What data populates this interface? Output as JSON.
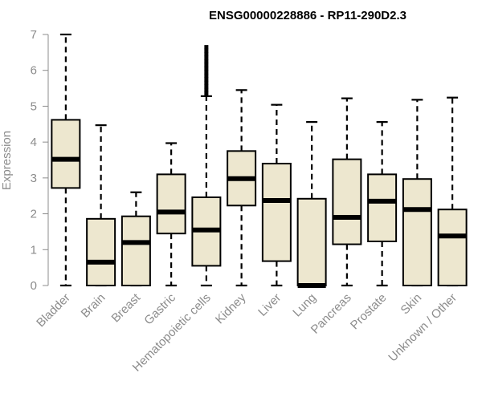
{
  "chart_data": {
    "type": "boxplot",
    "title": "ENSG00000228886 - RP11-290D2.3",
    "xlabel": "",
    "ylabel": "Expression",
    "ylim": [
      0,
      7
    ],
    "yticks": [
      "0",
      "1",
      "2",
      "3",
      "4",
      "5",
      "6",
      "7"
    ],
    "grid": false,
    "box_fill": "#ede7cf",
    "box_stroke": "#000000",
    "categories": [
      "Bladder",
      "Brain",
      "Breast",
      "Gastric",
      "Hematopoietic cells",
      "Kidney",
      "Liver",
      "Lung",
      "Pancreas",
      "Prostate",
      "Skin",
      "Unknown / Other"
    ],
    "boxes": [
      {
        "min": 0,
        "q1": 2.72,
        "median": 3.52,
        "q3": 4.62,
        "max": 7.0,
        "outliers": []
      },
      {
        "min": 0,
        "q1": 0,
        "median": 0.65,
        "q3": 1.86,
        "max": 4.47,
        "outliers": []
      },
      {
        "min": 0,
        "q1": 0,
        "median": 1.2,
        "q3": 1.93,
        "max": 2.6,
        "outliers": []
      },
      {
        "min": 0,
        "q1": 1.45,
        "median": 2.05,
        "q3": 3.1,
        "max": 3.97,
        "outliers": []
      },
      {
        "min": 0,
        "q1": 0.55,
        "median": 1.55,
        "q3": 2.46,
        "max": 5.28,
        "outliers": [
          5.35,
          5.45,
          5.55,
          5.65,
          5.75,
          5.85,
          5.95,
          6.05,
          6.15,
          6.25,
          6.35,
          6.45,
          6.55,
          6.65
        ]
      },
      {
        "min": 0,
        "q1": 2.23,
        "median": 2.98,
        "q3": 3.75,
        "max": 5.45,
        "outliers": []
      },
      {
        "min": 0,
        "q1": 0.68,
        "median": 2.37,
        "q3": 3.4,
        "max": 5.04,
        "outliers": []
      },
      {
        "min": 0,
        "q1": 0,
        "median": 0,
        "q3": 2.42,
        "max": 4.56,
        "outliers": []
      },
      {
        "min": 0,
        "q1": 1.15,
        "median": 1.9,
        "q3": 3.52,
        "max": 5.22,
        "outliers": []
      },
      {
        "min": 0,
        "q1": 1.23,
        "median": 2.35,
        "q3": 3.1,
        "max": 4.56,
        "outliers": []
      },
      {
        "min": 0,
        "q1": 0,
        "median": 2.12,
        "q3": 2.97,
        "max": 5.18,
        "outliers": []
      },
      {
        "min": 0,
        "q1": 0,
        "median": 1.38,
        "q3": 2.12,
        "max": 5.24,
        "outliers": []
      }
    ]
  }
}
